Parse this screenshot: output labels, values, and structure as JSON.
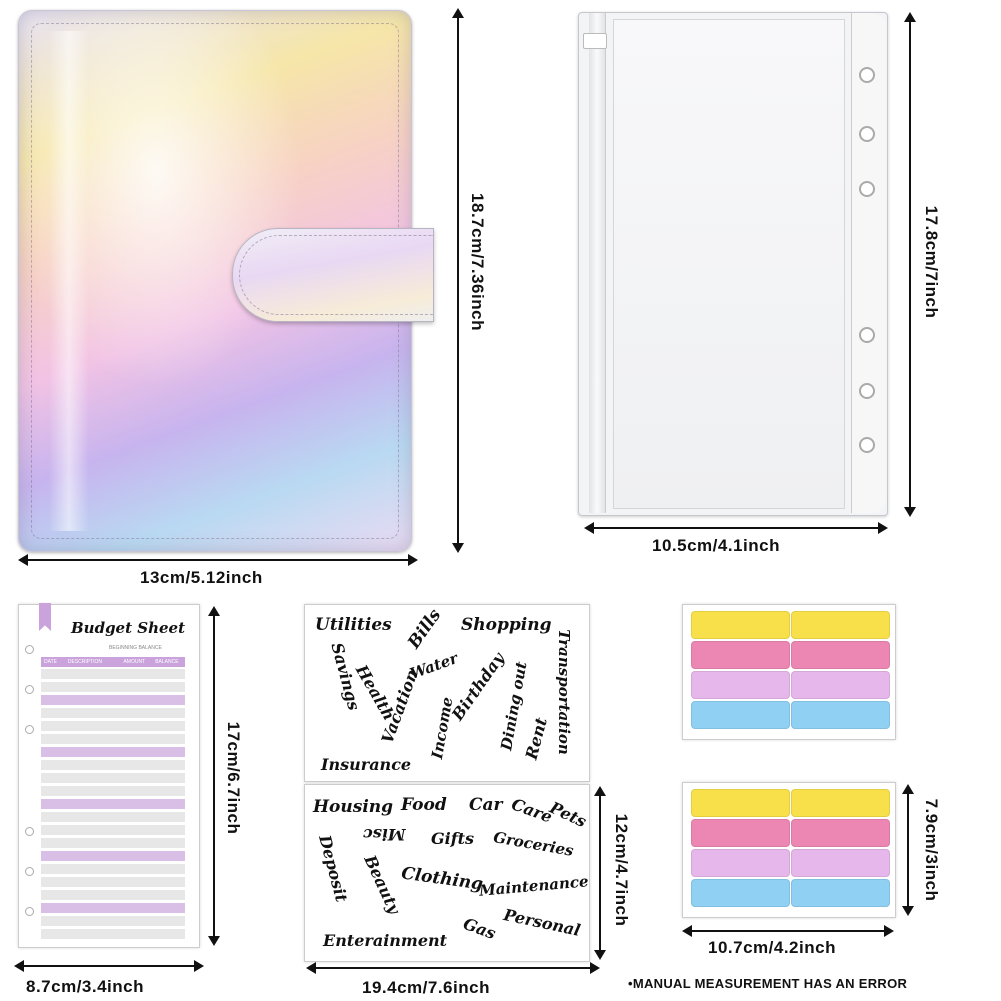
{
  "colors": {
    "holo_a": "#f3d6f0",
    "holo_b": "#f6f0a8",
    "holo_c": "#bfe3f3",
    "holo_d": "#d7b8ee",
    "tab_yellow": "#f8e04a",
    "tab_pink": "#ec86b2",
    "tab_lilac": "#e6b7ea",
    "tab_blue": "#8fd0f3",
    "sheet_purple": "#caa2dc",
    "sheet_grey": "#e6e6e6"
  },
  "binder": {
    "width_label": "13cm/5.12inch",
    "height_label": "18.7cm/7.36inch"
  },
  "pocket": {
    "width_label": "10.5cm/4.1inch",
    "height_label": "17.8cm/7inch"
  },
  "budget_sheet": {
    "title": "Budget Sheet",
    "subtitle": "BEGINNING BALANCE",
    "columns": [
      "DATE",
      "DESCRIPTION",
      "AMOUNT",
      "BALANCE"
    ],
    "width_label": "8.7cm/3.4inch",
    "height_label": "17cm/6.7inch"
  },
  "sticker_top": {
    "words": [
      "Utilities",
      "Bills",
      "Shopping",
      "Transportation",
      "Savings",
      "Health",
      "Water",
      "Vacation",
      "Birthday",
      "Dining out",
      "Income",
      "Rent",
      "Insurance"
    ]
  },
  "sticker_bottom": {
    "words": [
      "Housing",
      "Food",
      "Car",
      "Care",
      "Pets",
      "Misc",
      "Gifts",
      "Groceries",
      "Deposit",
      "Beauty",
      "Clothing",
      "Maintenance",
      "Gas",
      "Personal",
      "Enterainment"
    ],
    "height_label": "12cm/4.7inch",
    "width_label": "19.4cm/7.6inch"
  },
  "tabs": {
    "width_label": "10.7cm/4.2inch",
    "height_label": "7.9cm/3inch"
  },
  "note": "•MANUAL MEASUREMENT HAS AN ERROR"
}
